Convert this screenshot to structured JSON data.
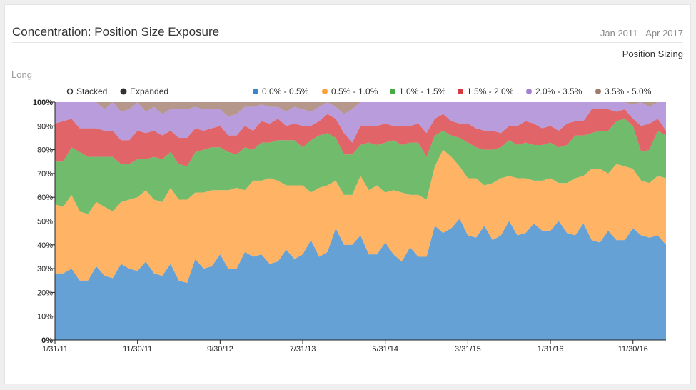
{
  "header": {
    "title": "Concentration: Position Size Exposure",
    "date_range": "Jan 2011 - Apr 2017",
    "sizing_link": "Position Sizing",
    "side_label": "Long"
  },
  "modes": [
    {
      "label": "Stacked",
      "active": false
    },
    {
      "label": "Expanded",
      "active": true
    }
  ],
  "chart_data": {
    "type": "area",
    "mode": "expanded",
    "y_tick_labels": [
      "0%",
      "10%",
      "20%",
      "30%",
      "40%",
      "50%",
      "60%",
      "70%",
      "80%",
      "90%",
      "100%"
    ],
    "ylim": [
      0,
      100
    ],
    "x_tick_labels": [
      "1/31/11",
      "11/30/11",
      "9/30/12",
      "7/31/13",
      "5/31/14",
      "3/31/15",
      "1/31/16",
      "11/30/16"
    ],
    "x_tick_index": [
      0,
      10,
      20,
      30,
      40,
      50,
      60,
      70
    ],
    "series": [
      {
        "name": "0.0% - 0.5%",
        "color": "#3a86c8",
        "values": [
          28,
          28,
          30,
          25,
          25,
          31,
          27,
          26,
          32,
          30,
          29,
          33,
          28,
          27,
          32,
          25,
          24,
          34,
          30,
          31,
          36,
          30,
          30,
          37,
          35,
          36,
          32,
          33,
          38,
          34,
          36,
          42,
          35,
          37,
          47,
          40,
          40,
          44,
          36,
          36,
          41,
          36,
          33,
          39,
          35,
          35,
          48,
          45,
          47,
          51,
          44,
          43,
          48,
          42,
          44,
          50,
          44,
          45,
          49,
          46,
          46,
          50,
          45,
          44,
          49,
          42,
          41,
          46,
          42,
          42,
          47,
          44,
          43,
          44,
          40
        ]
      },
      {
        "name": "0.5% - 1.0%",
        "color": "#ff9f3a",
        "values": [
          29,
          28,
          31,
          29,
          28,
          27,
          29,
          28,
          26,
          29,
          31,
          30,
          31,
          31,
          32,
          34,
          35,
          28,
          32,
          32,
          27,
          33,
          34,
          26,
          32,
          31,
          36,
          34,
          27,
          31,
          29,
          20,
          29,
          28,
          20,
          21,
          21,
          25,
          27,
          29,
          21,
          27,
          29,
          22,
          26,
          24,
          25,
          35,
          30,
          22,
          24,
          25,
          17,
          24,
          24,
          19,
          24,
          23,
          18,
          21,
          22,
          16,
          21,
          24,
          20,
          30,
          31,
          24,
          32,
          31,
          25,
          23,
          23,
          25,
          28
        ]
      },
      {
        "name": "1.0% - 1.5%",
        "color": "#49a942",
        "values": [
          18,
          19,
          20,
          25,
          24,
          19,
          21,
          23,
          16,
          15,
          16,
          13,
          18,
          18,
          15,
          15,
          14,
          17,
          18,
          18,
          18,
          16,
          14,
          18,
          13,
          16,
          15,
          17,
          19,
          19,
          16,
          22,
          22,
          22,
          18,
          17,
          17,
          13,
          20,
          17,
          21,
          21,
          20,
          22,
          22,
          18,
          13,
          8,
          9,
          12,
          15,
          13,
          15,
          14,
          13,
          15,
          14,
          15,
          15,
          15,
          15,
          15,
          16,
          18,
          17,
          15,
          16,
          18,
          18,
          20,
          18,
          12,
          14,
          19,
          18
        ]
      },
      {
        "name": "1.5% - 2.0%",
        "color": "#d9393e",
        "values": [
          16,
          17,
          12,
          10,
          12,
          12,
          11,
          11,
          10,
          10,
          12,
          11,
          11,
          10,
          9,
          11,
          12,
          10,
          8,
          8,
          9,
          7,
          8,
          9,
          8,
          9,
          8,
          9,
          6,
          7,
          9,
          6,
          6,
          8,
          8,
          9,
          5,
          8,
          7,
          8,
          8,
          6,
          8,
          7,
          8,
          10,
          7,
          7,
          6,
          6,
          8,
          8,
          8,
          8,
          6,
          6,
          8,
          9,
          9,
          7,
          7,
          7,
          9,
          6,
          6,
          10,
          9,
          9,
          4,
          4,
          3,
          11,
          11,
          5,
          2
        ]
      },
      {
        "name": "2.0% - 3.5%",
        "color": "#a480d1",
        "values": [
          9,
          8,
          7,
          11,
          11,
          11,
          9,
          12,
          12,
          13,
          12,
          9,
          10,
          9,
          9,
          12,
          12,
          9,
          9,
          8,
          7,
          8,
          9,
          8,
          10,
          7,
          7,
          5,
          6,
          7,
          7,
          6,
          6,
          5,
          5,
          8,
          14,
          10,
          10,
          10,
          9,
          10,
          10,
          10,
          9,
          13,
          7,
          5,
          8,
          9,
          9,
          11,
          12,
          12,
          13,
          10,
          10,
          8,
          9,
          11,
          10,
          12,
          9,
          8,
          8,
          3,
          3,
          3,
          4,
          3,
          6,
          10,
          7,
          7,
          12
        ]
      },
      {
        "name": "3.5% - 5.0%",
        "color": "#a07a6c",
        "values": [
          0,
          0,
          0,
          0,
          0,
          0,
          3,
          0,
          4,
          3,
          0,
          4,
          2,
          5,
          3,
          3,
          3,
          2,
          3,
          3,
          3,
          6,
          5,
          2,
          2,
          1,
          2,
          2,
          4,
          2,
          3,
          4,
          2,
          0,
          2,
          5,
          3,
          0,
          0,
          0,
          0,
          0,
          0,
          0,
          0,
          0,
          0,
          0,
          0,
          0,
          0,
          0,
          0,
          0,
          0,
          0,
          0,
          0,
          0,
          0,
          0,
          0,
          0,
          0,
          0,
          0,
          0,
          0,
          0,
          0,
          1,
          0,
          2,
          0,
          0
        ]
      }
    ]
  }
}
